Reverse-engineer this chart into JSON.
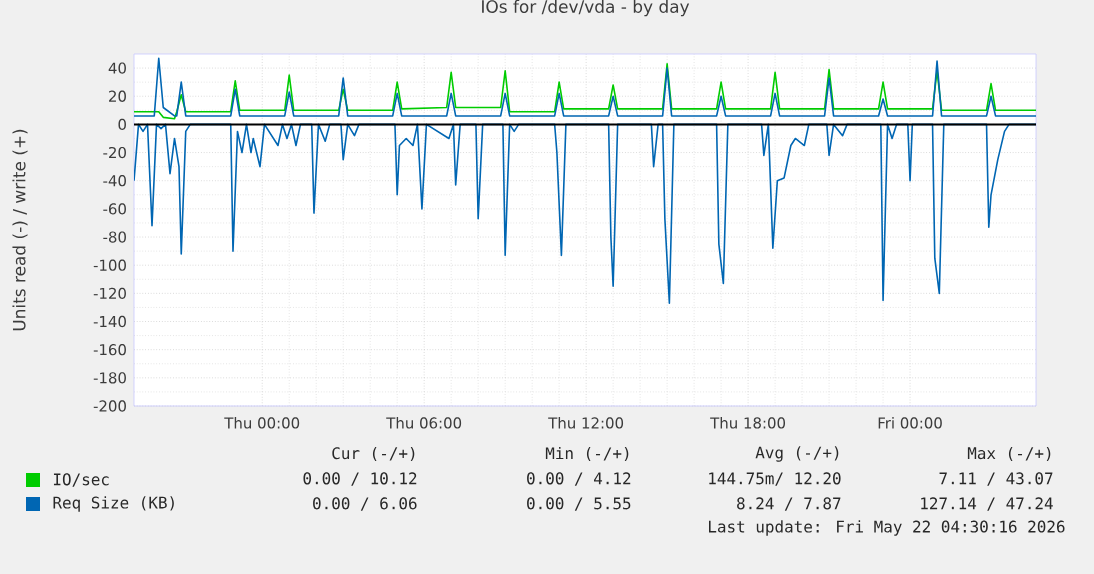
{
  "chart_data": {
    "type": "line",
    "title": "IOs for /dev/vda - by day",
    "ylabel": "Units read (-) / write (+)",
    "x": [
      "2026-05-20T19:15",
      "2026-05-20T20:00",
      "2026-05-20T20:10",
      "2026-05-20T20:20",
      "2026-05-20T20:45",
      "2026-05-20T20:50",
      "2026-05-20T21:00",
      "2026-05-20T21:10",
      "2026-05-20T22:50",
      "2026-05-20T23:00",
      "2026-05-20T23:10",
      "2026-05-21T00:50",
      "2026-05-21T01:00",
      "2026-05-21T01:10",
      "2026-05-21T02:50",
      "2026-05-21T03:00",
      "2026-05-21T03:10",
      "2026-05-21T04:50",
      "2026-05-21T05:00",
      "2026-05-21T05:10",
      "2026-05-21T06:50",
      "2026-05-21T07:00",
      "2026-05-21T07:10",
      "2026-05-21T08:50",
      "2026-05-21T09:00",
      "2026-05-21T09:10",
      "2026-05-21T10:50",
      "2026-05-21T11:00",
      "2026-05-21T11:10",
      "2026-05-21T12:50",
      "2026-05-21T13:00",
      "2026-05-21T13:10",
      "2026-05-21T14:50",
      "2026-05-21T15:00",
      "2026-05-21T15:10",
      "2026-05-21T16:50",
      "2026-05-21T17:00",
      "2026-05-21T17:10",
      "2026-05-21T18:50",
      "2026-05-21T19:00",
      "2026-05-21T19:10",
      "2026-05-21T20:50",
      "2026-05-21T21:00",
      "2026-05-21T21:10",
      "2026-05-21T22:50",
      "2026-05-21T23:00",
      "2026-05-21T23:10",
      "2026-05-22T00:50",
      "2026-05-22T01:00",
      "2026-05-22T01:10",
      "2026-05-22T02:50",
      "2026-05-22T03:00",
      "2026-05-22T03:10",
      "2026-05-22T04:40"
    ],
    "series": [
      {
        "name": "IO/sec",
        "color": "#00cc00",
        "values": [
          9,
          9,
          9,
          5,
          4,
          9,
          21,
          9,
          9,
          31,
          10,
          10,
          35,
          10,
          10,
          25,
          10,
          10,
          30,
          11,
          12,
          37,
          12,
          12,
          38,
          9,
          9,
          30,
          11,
          11,
          28,
          11,
          11,
          43,
          11,
          11,
          30,
          11,
          11,
          37,
          11,
          11,
          39,
          11,
          11,
          30,
          11,
          11,
          38,
          10,
          10,
          29,
          10,
          10
        ]
      },
      {
        "name": "Req Size (KB)",
        "color": "#0066b3",
        "values": [
          6,
          6,
          47,
          12,
          6,
          6,
          30,
          6,
          6,
          25,
          6,
          6,
          23,
          6,
          6,
          33,
          6,
          6,
          22,
          6,
          6,
          22,
          6,
          6,
          22,
          6,
          6,
          22,
          6,
          6,
          20,
          6,
          6,
          40,
          6,
          6,
          20,
          6,
          6,
          22,
          6,
          6,
          33,
          6,
          6,
          18,
          6,
          6,
          45,
          6,
          6,
          20,
          6,
          6
        ]
      },
      {
        "color": "#0066b3",
        "x": [
          "2026-05-20T19:15",
          "2026-05-20T19:25",
          "2026-05-20T19:35",
          "2026-05-20T19:45",
          "2026-05-20T19:55",
          "2026-05-20T20:05",
          "2026-05-20T20:15",
          "2026-05-20T20:25",
          "2026-05-20T20:35",
          "2026-05-20T20:45",
          "2026-05-20T20:55",
          "2026-05-20T21:00",
          "2026-05-20T21:10",
          "2026-05-20T21:20",
          "2026-05-20T22:50",
          "2026-05-20T22:55",
          "2026-05-20T23:05",
          "2026-05-20T23:15",
          "2026-05-20T23:25",
          "2026-05-20T23:35",
          "2026-05-20T23:40",
          "2026-05-20T23:55",
          "2026-05-21T00:05",
          "2026-05-21T00:35",
          "2026-05-21T00:45",
          "2026-05-21T00:55",
          "2026-05-21T01:05",
          "2026-05-21T01:15",
          "2026-05-21T01:25",
          "2026-05-21T01:50",
          "2026-05-21T01:55",
          "2026-05-21T02:05",
          "2026-05-21T02:20",
          "2026-05-21T02:30",
          "2026-05-21T02:55",
          "2026-05-21T03:00",
          "2026-05-21T03:10",
          "2026-05-21T03:25",
          "2026-05-21T03:35",
          "2026-05-21T04:55",
          "2026-05-21T05:00",
          "2026-05-21T05:05",
          "2026-05-21T05:20",
          "2026-05-21T05:35",
          "2026-05-21T05:45",
          "2026-05-21T05:55",
          "2026-05-21T06:05",
          "2026-05-21T06:55",
          "2026-05-21T07:05",
          "2026-05-21T07:10",
          "2026-05-21T07:20",
          "2026-05-21T07:55",
          "2026-05-21T08:00",
          "2026-05-21T08:10",
          "2026-05-21T08:55",
          "2026-05-21T09:00",
          "2026-05-21T09:10",
          "2026-05-21T09:20",
          "2026-05-21T09:30",
          "2026-05-21T10:50",
          "2026-05-21T10:55",
          "2026-05-21T11:05",
          "2026-05-21T11:15",
          "2026-05-21T12:50",
          "2026-05-21T12:55",
          "2026-05-21T13:00",
          "2026-05-21T13:10",
          "2026-05-21T14:25",
          "2026-05-21T14:30",
          "2026-05-21T14:40",
          "2026-05-21T14:50",
          "2026-05-21T14:55",
          "2026-05-21T15:05",
          "2026-05-21T15:15",
          "2026-05-21T16:50",
          "2026-05-21T16:55",
          "2026-05-21T17:05",
          "2026-05-21T17:15",
          "2026-05-21T18:30",
          "2026-05-21T18:35",
          "2026-05-21T18:45",
          "2026-05-21T18:55",
          "2026-05-21T19:05",
          "2026-05-21T19:20",
          "2026-05-21T19:35",
          "2026-05-21T19:45",
          "2026-05-21T20:05",
          "2026-05-21T20:15",
          "2026-05-21T20:55",
          "2026-05-21T21:00",
          "2026-05-21T21:10",
          "2026-05-21T21:30",
          "2026-05-21T21:40",
          "2026-05-21T22:55",
          "2026-05-21T23:00",
          "2026-05-21T23:10",
          "2026-05-21T23:20",
          "2026-05-21T23:30",
          "2026-05-21T23:55",
          "2026-05-22T00:00",
          "2026-05-22T00:05",
          "2026-05-22T00:50",
          "2026-05-22T00:55",
          "2026-05-22T01:05",
          "2026-05-22T01:15",
          "2026-05-22T02:50",
          "2026-05-22T02:55",
          "2026-05-22T03:00",
          "2026-05-22T03:15",
          "2026-05-22T03:30",
          "2026-05-22T03:40",
          "2026-05-22T04:40"
        ],
        "values": [
          -40,
          0,
          -5,
          0,
          -72,
          0,
          -3,
          0,
          -35,
          -10,
          -30,
          -92,
          -5,
          0,
          0,
          -90,
          -5,
          -20,
          0,
          -20,
          -10,
          -30,
          0,
          -15,
          0,
          -10,
          0,
          -15,
          0,
          0,
          -63,
          0,
          -12,
          0,
          0,
          -25,
          0,
          -8,
          0,
          0,
          -50,
          -15,
          -10,
          -15,
          0,
          -60,
          0,
          -10,
          0,
          -43,
          0,
          0,
          -67,
          0,
          0,
          -93,
          0,
          -5,
          0,
          0,
          -20,
          -93,
          0,
          0,
          -80,
          -115,
          0,
          0,
          -30,
          0,
          0,
          -67,
          -127,
          0,
          0,
          -85,
          -113,
          0,
          0,
          -22,
          0,
          -88,
          -40,
          -38,
          -15,
          -10,
          -15,
          0,
          0,
          -22,
          0,
          -8,
          0,
          0,
          -125,
          0,
          -10,
          0,
          0,
          -40,
          0,
          0,
          -95,
          -120,
          0,
          0,
          -73,
          -50,
          -25,
          -5,
          0,
          0
        ]
      }
    ],
    "xlim": [
      "2026-05-20T19:15",
      "2026-05-22T04:40"
    ],
    "xticks": [
      {
        "value": "2026-05-21T00:00",
        "label": "Thu 00:00"
      },
      {
        "value": "2026-05-21T06:00",
        "label": "Thu 06:00"
      },
      {
        "value": "2026-05-21T12:00",
        "label": "Thu 12:00"
      },
      {
        "value": "2026-05-21T18:00",
        "label": "Thu 18:00"
      },
      {
        "value": "2026-05-22T00:00",
        "label": "Fri 00:00"
      }
    ],
    "ylim": [
      -200,
      50
    ],
    "yticks": [
      -200,
      -180,
      -160,
      -140,
      -120,
      -100,
      -80,
      -60,
      -40,
      -20,
      0,
      20,
      40
    ],
    "ref_lines": [
      {
        "axis": "y",
        "value": 0,
        "color": "#000000"
      }
    ],
    "grid": true,
    "legend": "bottom",
    "annotations": [
      "Cur (-/+)",
      "Min (-/+)",
      "Avg (-/+)",
      "Max (-/+)",
      "0.00 / 10.12",
      "0.00 / 4.12",
      "144.75m/ 12.20",
      "7.11 / 43.07",
      "0.00 / 6.06",
      "0.00 / 5.55",
      "8.24 / 7.87",
      "127.14 / 47.24",
      "Last update: Fri May 22 04:30:16 2026"
    ]
  }
}
